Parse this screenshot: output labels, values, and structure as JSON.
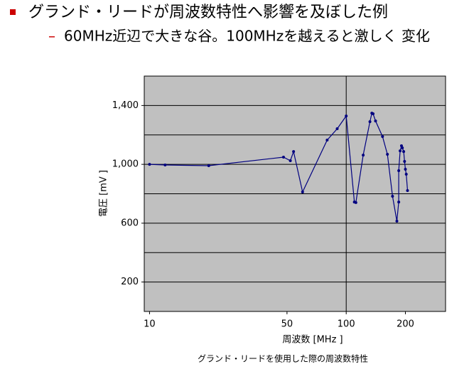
{
  "slide": {
    "bullet": "グランド・リードが周波数特性へ影響を及ぼした例",
    "sub_bullet": "60MHz近辺で大きな谷。100MHzを越えると激しく 変化"
  },
  "chart_data": {
    "type": "line",
    "caption": "グランド・リードを使用した際の周波数特性",
    "x_label": "周波数 [MHz ]",
    "y_label": "電圧 [mV ]",
    "x": [
      10,
      12,
      20,
      48,
      52,
      54,
      60,
      80,
      90,
      100,
      110,
      112,
      122,
      132,
      135,
      137,
      141,
      153,
      162,
      172,
      181,
      185,
      185,
      188,
      191,
      193,
      196,
      198,
      200,
      202,
      205
    ],
    "series": [
      {
        "color": "#000080",
        "values": [
          1000,
          996,
          991,
          1049,
          1025,
          1087,
          812,
          1165,
          1242,
          1329,
          744,
          740,
          1063,
          1290,
          1348,
          1344,
          1295,
          1189,
          1068,
          783,
          614,
          744,
          957,
          1092,
          1126,
          1112,
          1087,
          1020,
          967,
          933,
          822
        ]
      }
    ],
    "x_log": true,
    "xlim": [
      9.4,
      320
    ],
    "xticks": [
      10,
      50,
      100,
      200
    ],
    "xgrid": [
      100
    ],
    "ylim": [
      0,
      1600
    ],
    "yticks": [
      200,
      600,
      {
        "value": 1000,
        "label": "1,000"
      },
      {
        "value": 1400,
        "label": "1,400"
      }
    ],
    "yminor": [
      400,
      800,
      1200
    ],
    "plot_color": "#c0c0c0"
  }
}
